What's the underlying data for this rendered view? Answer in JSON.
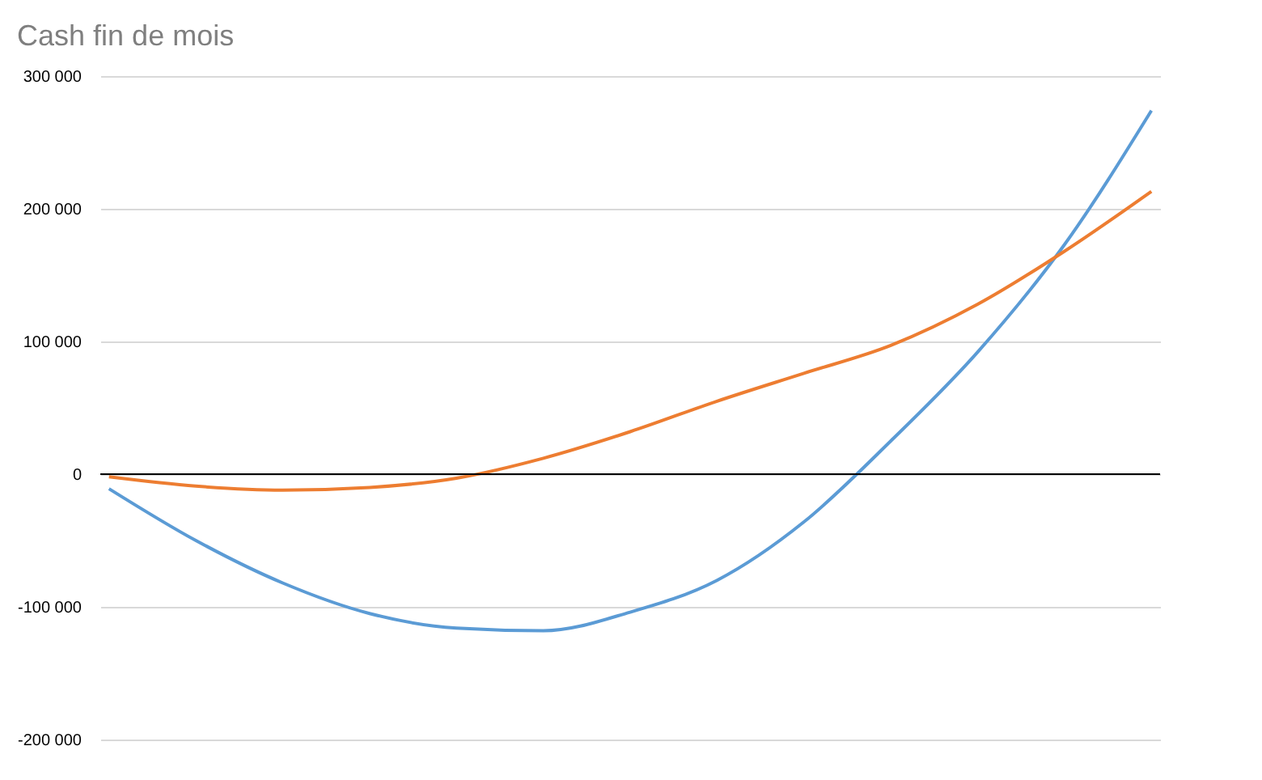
{
  "chart_data": {
    "type": "line",
    "title": "Cash fin de mois",
    "categories": [
      null,
      null,
      null,
      null,
      null,
      null,
      null,
      null,
      null,
      null,
      null,
      null,
      null
    ],
    "series": [
      {
        "color": "#5b9bd5",
        "values": [
          -11000,
          -50000,
          -82000,
          -105000,
          -116000,
          -118000,
          -104000,
          -80000,
          -36000,
          25000,
          92000,
          173000,
          274000
        ]
      },
      {
        "color": "#ed7d31",
        "values": [
          -2000,
          -9000,
          -12000,
          -10000,
          -3000,
          12000,
          32000,
          55000,
          76000,
          97000,
          128000,
          168000,
          213000
        ]
      }
    ],
    "ylim": [
      -200000,
      300000
    ],
    "yticks": [
      {
        "value": -200000,
        "label": "-200 000"
      },
      {
        "value": -100000,
        "label": "-100 000"
      },
      0,
      {
        "value": 100000,
        "label": "100 000"
      },
      {
        "value": 200000,
        "label": "200 000"
      },
      {
        "value": 300000,
        "label": "300 000"
      }
    ],
    "ref_lines": [
      {
        "axis": "y",
        "value": 0,
        "color": "#000000"
      }
    ],
    "grid": "y",
    "marker": "none",
    "line_style": "solid"
  }
}
